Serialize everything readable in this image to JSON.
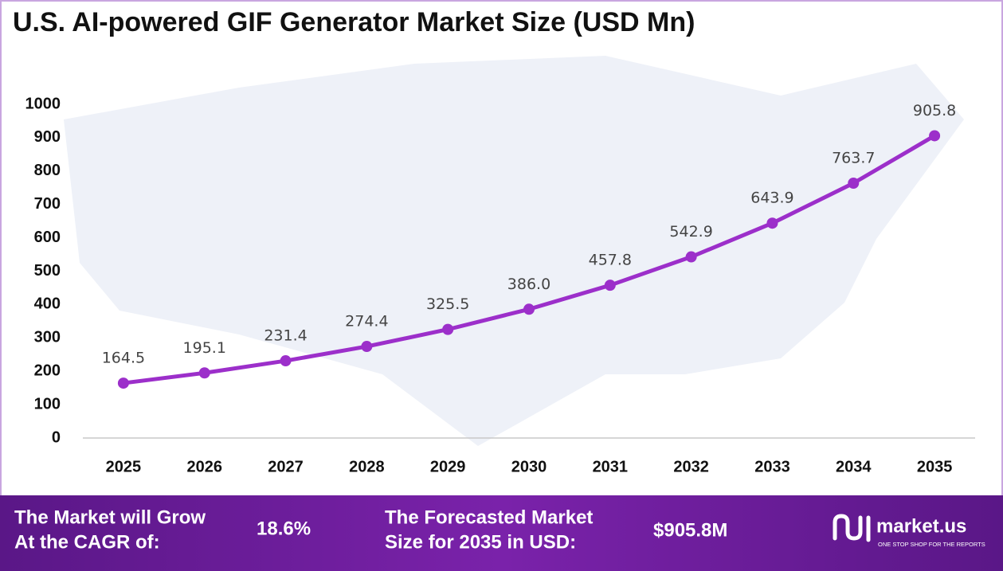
{
  "chart_data": {
    "type": "line",
    "title": "U.S. AI-powered GIF Generator Market Size (USD Mn)",
    "categories": [
      "2025",
      "2026",
      "2027",
      "2028",
      "2029",
      "2030",
      "2031",
      "2032",
      "2033",
      "2034",
      "2035"
    ],
    "values": [
      164.5,
      195.1,
      231.4,
      274.4,
      325.5,
      386.0,
      457.8,
      542.9,
      643.9,
      763.7,
      905.8
    ],
    "value_labels": [
      "164.5",
      "195.1",
      "231.4",
      "274.4",
      "325.5",
      "386.0",
      "457.8",
      "542.9",
      "643.9",
      "763.7",
      "905.8"
    ],
    "color": "#9c2fca",
    "ylim": [
      0,
      1000
    ],
    "yticks": [
      0,
      100,
      200,
      300,
      400,
      500,
      600,
      700,
      800,
      900,
      1000
    ],
    "grid": false
  },
  "footer": {
    "cagr_line1": "The Market will Grow",
    "cagr_line2": "At the CAGR of:",
    "cagr": "18.6%",
    "forecast_line1": "The Forecasted Market",
    "forecast_line2": "Size for 2035 in USD:",
    "forecast": "$905.8M",
    "brand": "market.us",
    "tagline": "ONE STOP SHOP FOR THE REPORTS"
  }
}
